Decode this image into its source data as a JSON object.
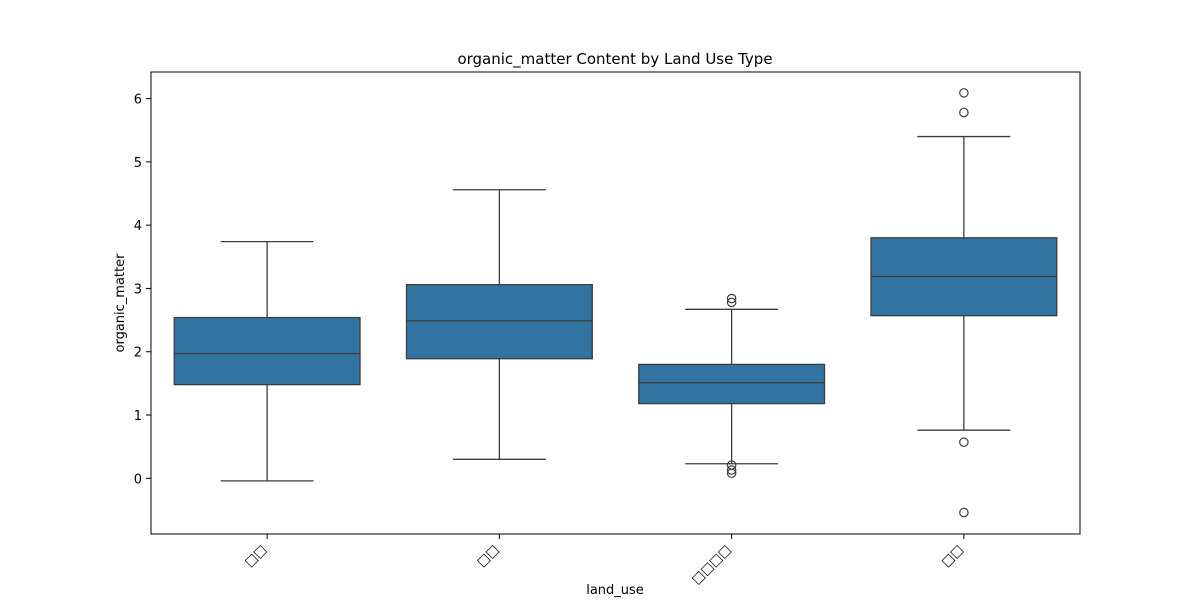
{
  "chart_data": {
    "type": "box",
    "title": "organic_matter Content by Land Use Type",
    "xlabel": "land_use",
    "ylabel": "organic_matter",
    "ylim": [
      -0.88,
      6.42
    ],
    "yticks": [
      0,
      1,
      2,
      3,
      4,
      5,
      6
    ],
    "grid": false,
    "legend": "none",
    "categories": [
      "□□",
      "□□",
      "□□□□",
      "□□"
    ],
    "boxes": [
      {
        "category": "□□",
        "q1": 1.48,
        "median": 1.97,
        "q3": 2.54,
        "whisker_low": -0.04,
        "whisker_high": 3.74,
        "outliers": []
      },
      {
        "category": "□□",
        "q1": 1.89,
        "median": 2.49,
        "q3": 3.06,
        "whisker_low": 0.3,
        "whisker_high": 4.56,
        "outliers": []
      },
      {
        "category": "□□□□",
        "q1": 1.18,
        "median": 1.51,
        "q3": 1.8,
        "whisker_low": 0.23,
        "whisker_high": 2.67,
        "outliers": [
          2.78,
          2.84,
          0.21,
          0.13,
          0.08
        ]
      },
      {
        "category": "□□",
        "q1": 2.57,
        "median": 3.19,
        "q3": 3.8,
        "whisker_low": 0.76,
        "whisker_high": 5.4,
        "outliers": [
          6.09,
          5.78,
          0.57,
          -0.54
        ]
      }
    ],
    "colors": {
      "box_fill": "#3274a1",
      "line": "#3d3d3d",
      "axis": "#000000"
    }
  }
}
